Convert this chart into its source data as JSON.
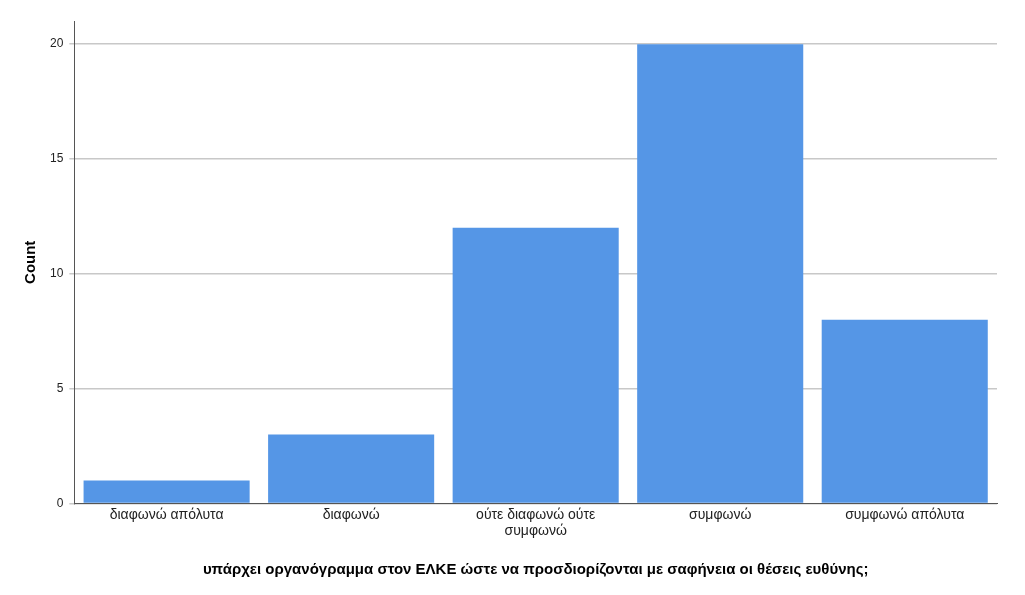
{
  "chart_data": {
    "type": "bar",
    "xlabel": "υπάρχει οργανόγραμμα στον ΕΛΚΕ ώστε να προσδιορίζονται με σαφήνεια οι θέσεις ευθύνης;",
    "ylabel": "Count",
    "categories": [
      "διαφωνώ απόλυτα",
      "διαφωνώ",
      "ούτε διαφωνώ ούτε συμφωνώ",
      "συμφωνώ",
      "συμφωνώ απόλυτα"
    ],
    "values": [
      1,
      3,
      12,
      20,
      8
    ],
    "color": "#5596e6",
    "ylim": [
      0,
      21
    ],
    "yticks": [
      0,
      5,
      10,
      15,
      20
    ],
    "grid": "y"
  }
}
